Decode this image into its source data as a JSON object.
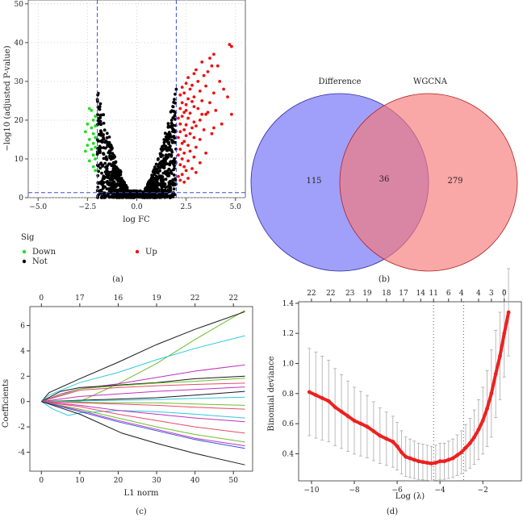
{
  "panels": [
    {
      "id": "a",
      "caption": "(a)"
    },
    {
      "id": "b",
      "caption": "(b)"
    },
    {
      "id": "c",
      "caption": "(c)"
    },
    {
      "id": "d",
      "caption": "(d)"
    }
  ],
  "chart_data": [
    {
      "panel": "a",
      "type": "scatter",
      "title": "",
      "xlabel": "log FC",
      "ylabel": "−log10 (adjusted P-value)",
      "xlim": [
        -5.5,
        5.5
      ],
      "ylim": [
        0,
        51
      ],
      "xticks": [
        -5.0,
        -2.5,
        0.0,
        2.5,
        5.0
      ],
      "xtick_labels": [
        "−5.0",
        "−2.5",
        "0.0",
        "2.5",
        "5.0"
      ],
      "yticks": [
        0,
        10,
        20,
        30,
        40,
        50
      ],
      "thresholds": {
        "logfc": [
          -2,
          2
        ],
        "padj_line": 1.3
      },
      "legend_title": "Sig",
      "legend": [
        {
          "label": "Down",
          "color": "#22dd22"
        },
        {
          "label": "Not",
          "color": "#000000"
        },
        {
          "label": "Up",
          "color": "#ee1111"
        }
      ],
      "series": [
        {
          "name": "Up",
          "color": "#ee1111",
          "points": [
            [
              4.7,
              39.5
            ],
            [
              4.8,
              39
            ],
            [
              3.9,
              37
            ],
            [
              3.7,
              36
            ],
            [
              3.3,
              35
            ],
            [
              3.8,
              34
            ],
            [
              4.1,
              34
            ],
            [
              3.0,
              33
            ],
            [
              3.6,
              32.5
            ],
            [
              2.9,
              32
            ],
            [
              3.4,
              31.5
            ],
            [
              2.6,
              31
            ],
            [
              4.2,
              30
            ],
            [
              3.1,
              30
            ],
            [
              2.5,
              29.5
            ],
            [
              2.8,
              29
            ],
            [
              3.5,
              28.8
            ],
            [
              2.3,
              28.5
            ],
            [
              4.4,
              28
            ],
            [
              2.7,
              28
            ],
            [
              3.2,
              27.5
            ],
            [
              2.4,
              27
            ],
            [
              3.9,
              27
            ],
            [
              2.2,
              26.5
            ],
            [
              2.9,
              26
            ],
            [
              4.6,
              26
            ],
            [
              2.6,
              25.5
            ],
            [
              3.3,
              25
            ],
            [
              2.3,
              24.5
            ],
            [
              3.7,
              24.5
            ],
            [
              2.5,
              24
            ],
            [
              2.9,
              23.5
            ],
            [
              2.2,
              23
            ],
            [
              3.1,
              23
            ],
            [
              4.0,
              22.5
            ],
            [
              2.4,
              22
            ],
            [
              2.7,
              21.8
            ],
            [
              3.5,
              21.5
            ],
            [
              4.8,
              21.5
            ],
            [
              2.3,
              21
            ],
            [
              2.1,
              20.5
            ],
            [
              2.6,
              20.5
            ],
            [
              3.2,
              20
            ],
            [
              2.9,
              19.5
            ],
            [
              2.2,
              19
            ],
            [
              2.5,
              18.8
            ],
            [
              3.0,
              18.5
            ],
            [
              2.8,
              18
            ],
            [
              2.4,
              17.5
            ],
            [
              3.4,
              17.5
            ],
            [
              2.2,
              17
            ],
            [
              2.7,
              16.5
            ],
            [
              3.8,
              16.5
            ],
            [
              2.5,
              16
            ],
            [
              2.1,
              15.5
            ],
            [
              2.9,
              15.5
            ],
            [
              3.2,
              15
            ],
            [
              2.4,
              14.5
            ],
            [
              2.3,
              14
            ],
            [
              2.6,
              13.5
            ],
            [
              3.0,
              13
            ],
            [
              2.2,
              12.5
            ],
            [
              2.7,
              12
            ],
            [
              2.4,
              11.5
            ],
            [
              3.5,
              11.5
            ],
            [
              2.1,
              11
            ],
            [
              2.9,
              10.5
            ],
            [
              2.3,
              10
            ],
            [
              2.6,
              9.5
            ],
            [
              3.2,
              9
            ],
            [
              2.2,
              8.5
            ],
            [
              2.4,
              8
            ],
            [
              2.8,
              7.5
            ],
            [
              2.5,
              7
            ],
            [
              3.0,
              6.5
            ],
            [
              2.3,
              6
            ],
            [
              2.1,
              5.5
            ],
            [
              2.6,
              5
            ],
            [
              2.2,
              4.5
            ],
            [
              2.4,
              4
            ],
            [
              3.6,
              22
            ],
            [
              4.3,
              19
            ],
            [
              3.9,
              18
            ],
            [
              2.8,
              24.8
            ],
            [
              3.3,
              21.5
            ],
            [
              2.5,
              22.5
            ]
          ]
        },
        {
          "name": "Down",
          "color": "#22dd22",
          "points": [
            [
              -2.4,
              23
            ],
            [
              -2.3,
              22.5
            ],
            [
              -2.1,
              21
            ],
            [
              -2.2,
              20
            ],
            [
              -2.5,
              19
            ],
            [
              -2.1,
              18.5
            ],
            [
              -2.3,
              18
            ],
            [
              -2.6,
              17
            ],
            [
              -2.2,
              16.5
            ],
            [
              -2.1,
              15.5
            ],
            [
              -2.4,
              15
            ],
            [
              -2.2,
              14
            ],
            [
              -2.5,
              13.5
            ],
            [
              -2.1,
              13
            ],
            [
              -2.3,
              12.5
            ],
            [
              -2.6,
              12
            ],
            [
              -2.2,
              11
            ],
            [
              -2.1,
              10
            ],
            [
              -2.4,
              9.5
            ],
            [
              -2.2,
              8
            ],
            [
              -2.1,
              7
            ]
          ]
        }
      ]
    },
    {
      "panel": "b",
      "type": "venn",
      "sets": [
        {
          "name": "Difference",
          "only": 115,
          "color": "#8080f8"
        },
        {
          "name": "WGCNA",
          "only": 279,
          "color": "#f87878"
        }
      ],
      "intersection": 36
    },
    {
      "panel": "c",
      "type": "line",
      "xlabel": "L1 norm",
      "ylabel": "Coefficients",
      "xlim": [
        -3,
        55
      ],
      "ylim": [
        -5.5,
        7.5
      ],
      "xticks": [
        0,
        10,
        20,
        30,
        40,
        50
      ],
      "yticks": [
        -4,
        -2,
        0,
        2,
        4,
        6
      ],
      "top_axis_x": [
        0,
        10,
        20,
        30,
        40,
        50
      ],
      "top_axis_labels": [
        "0",
        "17",
        "16",
        "19",
        "22",
        "22"
      ],
      "series": [
        {
          "color": "#6cbf2a",
          "x": [
            0,
            10,
            20,
            30,
            40,
            53
          ],
          "y": [
            0,
            0,
            1.4,
            3.0,
            4.9,
            7.2
          ]
        },
        {
          "color": "#1a1a1a",
          "x": [
            0,
            2,
            10,
            20,
            30,
            40,
            53
          ],
          "y": [
            0,
            0.7,
            1.8,
            3.1,
            4.5,
            5.7,
            7.1
          ]
        },
        {
          "color": "#30c8d8",
          "x": [
            0,
            2,
            10,
            20,
            30,
            40,
            53
          ],
          "y": [
            0,
            0.5,
            1.5,
            2.3,
            3.3,
            4.2,
            5.2
          ]
        },
        {
          "color": "#c030c0",
          "x": [
            0,
            5,
            10,
            20,
            30,
            40,
            53
          ],
          "y": [
            0,
            0.6,
            1.0,
            1.4,
            1.9,
            2.4,
            2.9
          ]
        },
        {
          "color": "#1a1a1a",
          "x": [
            0,
            5,
            10,
            20,
            30,
            40,
            53
          ],
          "y": [
            0,
            0.8,
            1.1,
            1.3,
            1.5,
            1.8,
            2.0
          ]
        },
        {
          "color": "#6cbf2a",
          "x": [
            0,
            10,
            20,
            30,
            40,
            53
          ],
          "y": [
            0,
            1.0,
            1.25,
            1.45,
            1.6,
            1.85
          ]
        },
        {
          "color": "#e84a6a",
          "x": [
            0,
            10,
            20,
            30,
            40,
            53
          ],
          "y": [
            0,
            0.9,
            1.1,
            1.25,
            1.35,
            1.45
          ]
        },
        {
          "color": "#c030c0",
          "x": [
            0,
            10,
            20,
            30,
            40,
            53
          ],
          "y": [
            0,
            0.4,
            0.6,
            0.8,
            0.95,
            1.15
          ]
        },
        {
          "color": "#1a1a1a",
          "x": [
            0,
            10,
            20,
            30,
            40,
            53
          ],
          "y": [
            0,
            0.1,
            0.2,
            0.3,
            0.5,
            0.8
          ]
        },
        {
          "color": "#30c8d8",
          "x": [
            0,
            10,
            20,
            30,
            40,
            53
          ],
          "y": [
            0,
            0.05,
            0.1,
            0.15,
            0.25,
            0.35
          ]
        },
        {
          "color": "#6cbf2a",
          "x": [
            0,
            10,
            20,
            30,
            40,
            53
          ],
          "y": [
            0,
            -0.05,
            -0.1,
            -0.1,
            -0.2,
            -0.3
          ]
        },
        {
          "color": "#e84a6a",
          "x": [
            0,
            10,
            20,
            30,
            40,
            53
          ],
          "y": [
            0,
            -0.1,
            -0.2,
            -0.3,
            -0.45,
            -0.6
          ]
        },
        {
          "color": "#30c8d8",
          "x": [
            0,
            3,
            7,
            10,
            20,
            30,
            40,
            53
          ],
          "y": [
            0,
            -0.6,
            -1.1,
            -0.9,
            -0.7,
            -0.8,
            -1.0,
            -1.3
          ]
        },
        {
          "color": "#c030c0",
          "x": [
            0,
            10,
            20,
            30,
            40,
            53
          ],
          "y": [
            0,
            -0.3,
            -0.7,
            -1.0,
            -1.3,
            -1.6
          ]
        },
        {
          "color": "#e84a6a",
          "x": [
            0,
            10,
            20,
            30,
            40,
            53
          ],
          "y": [
            0,
            -0.4,
            -1.0,
            -1.5,
            -2.0,
            -2.5
          ]
        },
        {
          "color": "#6cbf2a",
          "x": [
            0,
            10,
            20,
            30,
            40,
            53
          ],
          "y": [
            0,
            -0.6,
            -1.3,
            -2.0,
            -2.6,
            -3.2
          ]
        },
        {
          "color": "#c030c0",
          "x": [
            0,
            10,
            20,
            30,
            40,
            53
          ],
          "y": [
            0,
            -0.7,
            -1.5,
            -2.2,
            -2.9,
            -3.5
          ]
        },
        {
          "color": "#3050d8",
          "x": [
            0,
            10,
            20,
            30,
            40,
            53
          ],
          "y": [
            0,
            -0.8,
            -1.6,
            -2.3,
            -3.0,
            -3.7
          ]
        },
        {
          "color": "#1a1a1a",
          "x": [
            0,
            10,
            21,
            30,
            40,
            53
          ],
          "y": [
            0,
            -1.0,
            -2.5,
            -3.3,
            -4.1,
            -5.0
          ]
        }
      ]
    },
    {
      "panel": "d",
      "type": "errorbar",
      "xlabel": "Log (λ)",
      "ylabel": "Binomial deviance",
      "xlim": [
        -10.6,
        -0.2
      ],
      "ylim": [
        0.22,
        1.41
      ],
      "xticks": [
        -10,
        -8,
        -6,
        -4,
        -2
      ],
      "xtick_labels": [
        "−10",
        "−8",
        "−6",
        "−4",
        "−2"
      ],
      "yticks": [
        0.4,
        0.6,
        0.8,
        1.0,
        1.2,
        1.4
      ],
      "ytick_labels": [
        "0.4",
        "0.6",
        "0.8",
        "1.0",
        "1.2",
        "1.4"
      ],
      "top_axis_x": [
        -10,
        -9.1,
        -8.2,
        -7.4,
        -6.5,
        -5.7,
        -4.9,
        -4.3,
        -3.6,
        -3.0,
        -2.2,
        -1.6,
        -1.0
      ],
      "top_axis_labels": [
        "22",
        "22",
        "23",
        "19",
        "18",
        "17",
        "14",
        "11",
        "6",
        "4",
        "4",
        "3",
        "0"
      ],
      "vlines": [
        -4.3,
        -2.9
      ],
      "points_x": [
        -10.1,
        -9.8,
        -9.5,
        -9.2,
        -8.9,
        -8.6,
        -8.3,
        -8.0,
        -7.7,
        -7.4,
        -7.1,
        -6.8,
        -6.5,
        -6.2,
        -6.0,
        -5.8,
        -5.6,
        -5.4,
        -5.2,
        -5.0,
        -4.8,
        -4.6,
        -4.4,
        -4.2,
        -4.0,
        -3.8,
        -3.6,
        -3.4,
        -3.2,
        -3.0,
        -2.8,
        -2.6,
        -2.4,
        -2.2,
        -2.0,
        -1.8,
        -1.6,
        -1.4,
        -1.2,
        -1.0,
        -0.8
      ],
      "points_y": [
        0.81,
        0.79,
        0.77,
        0.75,
        0.71,
        0.68,
        0.65,
        0.62,
        0.6,
        0.58,
        0.55,
        0.52,
        0.5,
        0.48,
        0.45,
        0.41,
        0.38,
        0.37,
        0.36,
        0.35,
        0.345,
        0.34,
        0.335,
        0.34,
        0.35,
        0.35,
        0.36,
        0.37,
        0.39,
        0.41,
        0.44,
        0.47,
        0.51,
        0.56,
        0.62,
        0.7,
        0.8,
        0.93,
        1.05,
        1.2,
        1.34
      ],
      "error": 0.29,
      "point_color": "#ee2020",
      "errorbar_color": "#aaaaaa"
    }
  ]
}
